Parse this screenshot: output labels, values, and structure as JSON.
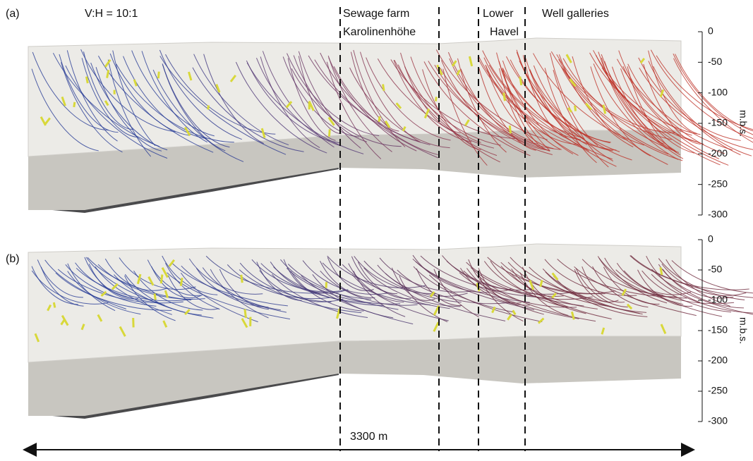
{
  "figure": {
    "ratio_label": "V:H = 10:1",
    "regions": [
      {
        "lines": [
          "Sewage farm",
          "Karolinenhöhe"
        ]
      },
      {
        "lines": [
          "Lower",
          "Havel"
        ]
      },
      {
        "lines": [
          "Well galleries"
        ]
      }
    ],
    "scale_bar": "3300 m",
    "panels": [
      {
        "label": "(a)",
        "axis_label": "m.b.s.",
        "ylim": [
          0,
          -300
        ],
        "yticks": [
          0,
          -50,
          -100,
          -150,
          -200,
          -250,
          -300
        ]
      },
      {
        "label": "(b)",
        "axis_label": "m.b.s.",
        "ylim": [
          0,
          -300
        ],
        "yticks": [
          0,
          -50,
          -100,
          -150,
          -200,
          -250,
          -300
        ]
      }
    ]
  }
}
